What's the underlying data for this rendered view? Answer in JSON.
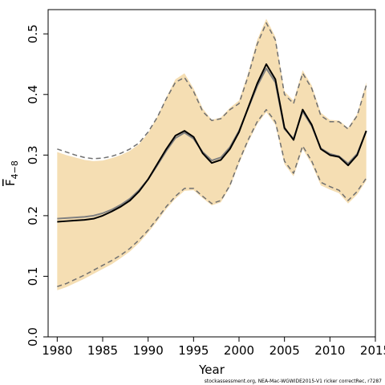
{
  "chart_data": {
    "type": "line",
    "xlabel": "Year",
    "ylabel_main": "F",
    "ylabel_sub": "4−8",
    "xlim": [
      1979,
      2015
    ],
    "ylim": [
      0,
      0.54
    ],
    "x_ticks": [
      1980,
      1985,
      1990,
      1995,
      2000,
      2005,
      2010,
      2015
    ],
    "y_ticks": [
      "0.0",
      "0.1",
      "0.2",
      "0.3",
      "0.4",
      "0.5"
    ],
    "grid": false,
    "band_color": "#f5deb3",
    "x": [
      1980,
      1981,
      1982,
      1983,
      1984,
      1985,
      1986,
      1987,
      1988,
      1989,
      1990,
      1991,
      1992,
      1993,
      1994,
      1995,
      1996,
      1997,
      1998,
      1999,
      2000,
      2001,
      2002,
      2003,
      2004,
      2005,
      2006,
      2007,
      2008,
      2009,
      2010,
      2011,
      2012,
      2013,
      2014
    ],
    "series": [
      {
        "role": "estimate",
        "color": "#000000",
        "values": [
          0.19,
          0.191,
          0.192,
          0.193,
          0.195,
          0.2,
          0.207,
          0.215,
          0.225,
          0.24,
          0.26,
          0.285,
          0.31,
          0.332,
          0.34,
          0.33,
          0.303,
          0.287,
          0.292,
          0.31,
          0.338,
          0.378,
          0.418,
          0.45,
          0.425,
          0.345,
          0.325,
          0.375,
          0.35,
          0.31,
          0.3,
          0.297,
          0.283,
          0.3,
          0.34
        ]
      },
      {
        "role": "estimate-alt",
        "color": "#808080",
        "values": [
          0.195,
          0.196,
          0.197,
          0.198,
          0.2,
          0.204,
          0.21,
          0.218,
          0.228,
          0.242,
          0.26,
          0.283,
          0.307,
          0.328,
          0.337,
          0.327,
          0.305,
          0.291,
          0.296,
          0.313,
          0.34,
          0.377,
          0.414,
          0.443,
          0.42,
          0.343,
          0.327,
          0.372,
          0.348,
          0.311,
          0.302,
          0.298,
          0.286,
          0.302,
          0.34
        ]
      },
      {
        "role": "upper-bound",
        "color": "#707070",
        "values": [
          0.31,
          0.305,
          0.3,
          0.296,
          0.294,
          0.295,
          0.298,
          0.303,
          0.31,
          0.32,
          0.338,
          0.362,
          0.393,
          0.42,
          0.428,
          0.405,
          0.372,
          0.357,
          0.36,
          0.375,
          0.385,
          0.43,
          0.483,
          0.518,
          0.49,
          0.4,
          0.385,
          0.435,
          0.41,
          0.365,
          0.355,
          0.355,
          0.343,
          0.365,
          0.415
        ]
      },
      {
        "role": "lower-bound",
        "color": "#707070",
        "values": [
          0.083,
          0.088,
          0.095,
          0.102,
          0.11,
          0.118,
          0.126,
          0.135,
          0.146,
          0.16,
          0.176,
          0.195,
          0.215,
          0.232,
          0.245,
          0.245,
          0.232,
          0.22,
          0.225,
          0.25,
          0.29,
          0.325,
          0.355,
          0.375,
          0.355,
          0.29,
          0.27,
          0.315,
          0.29,
          0.255,
          0.248,
          0.242,
          0.225,
          0.24,
          0.262
        ]
      },
      {
        "role": "band-upper",
        "values": [
          0.305,
          0.3,
          0.296,
          0.292,
          0.29,
          0.291,
          0.295,
          0.3,
          0.307,
          0.318,
          0.336,
          0.363,
          0.395,
          0.425,
          0.435,
          0.41,
          0.377,
          0.358,
          0.362,
          0.378,
          0.39,
          0.435,
          0.49,
          0.525,
          0.495,
          0.405,
          0.39,
          0.44,
          0.415,
          0.37,
          0.358,
          0.357,
          0.345,
          0.368,
          0.42
        ]
      },
      {
        "role": "band-lower",
        "values": [
          0.077,
          0.082,
          0.089,
          0.096,
          0.104,
          0.112,
          0.12,
          0.13,
          0.141,
          0.155,
          0.172,
          0.191,
          0.211,
          0.228,
          0.241,
          0.242,
          0.229,
          0.217,
          0.222,
          0.247,
          0.286,
          0.321,
          0.351,
          0.371,
          0.35,
          0.285,
          0.265,
          0.31,
          0.285,
          0.25,
          0.243,
          0.237,
          0.22,
          0.235,
          0.258
        ]
      }
    ]
  },
  "footer": "stockassessment.org, NEA-Mac-WGWIDE2015-V1  ricker  correctRec, r7287"
}
